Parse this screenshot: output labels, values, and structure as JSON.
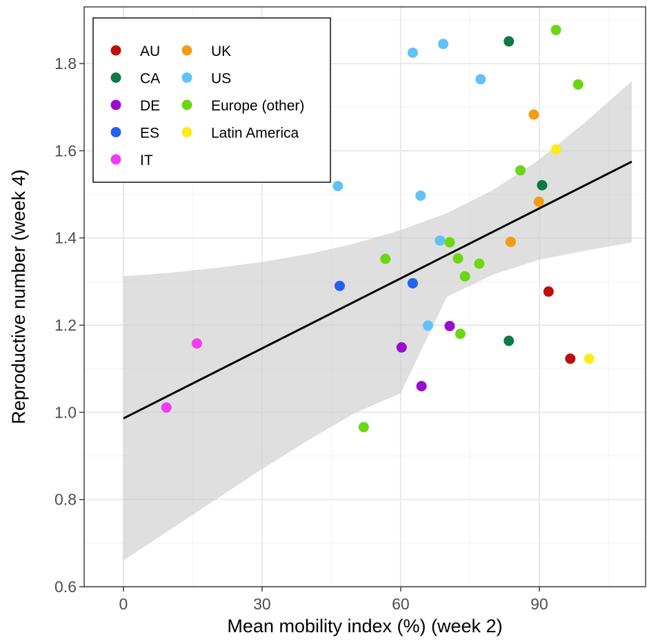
{
  "chart_data": {
    "type": "scatter",
    "title": "",
    "xlabel": "Mean mobility index (%) (week 2)",
    "ylabel": "Reproductive number (week 4)",
    "xlim": [
      -8.5,
      113
    ],
    "ylim": [
      0.6,
      1.93
    ],
    "x_ticks": [
      0,
      30,
      60,
      90
    ],
    "y_ticks": [
      0.6,
      0.8,
      1.0,
      1.2,
      1.4,
      1.6,
      1.8
    ],
    "x_tick_labels": [
      "0",
      "30",
      "60",
      "90"
    ],
    "y_tick_labels": [
      "0.6",
      "0.8",
      "1.0",
      "1.2",
      "1.4",
      "1.6",
      "1.8"
    ],
    "grid": true,
    "legend_position": "top-left",
    "series": [
      {
        "name": "AU",
        "color": "#bf0d0d",
        "points": [
          [
            92.0,
            1.277
          ],
          [
            96.7,
            1.123
          ]
        ]
      },
      {
        "name": "CA",
        "color": "#0b7a45",
        "points": [
          [
            83.4,
            1.851
          ],
          [
            90.6,
            1.521
          ],
          [
            83.4,
            1.164
          ]
        ]
      },
      {
        "name": "DE",
        "color": "#9a0ccf",
        "points": [
          [
            70.6,
            1.198
          ],
          [
            60.2,
            1.149
          ],
          [
            64.5,
            1.06
          ]
        ]
      },
      {
        "name": "ES",
        "color": "#2461f0",
        "points": [
          [
            46.8,
            1.29
          ],
          [
            62.6,
            1.296
          ]
        ]
      },
      {
        "name": "IT",
        "color": "#f23cf0",
        "points": [
          [
            15.9,
            1.158
          ],
          [
            9.3,
            1.011
          ]
        ]
      },
      {
        "name": "UK",
        "color": "#f59c15",
        "points": [
          [
            88.8,
            1.683
          ],
          [
            89.9,
            1.483
          ],
          [
            83.8,
            1.391
          ]
        ]
      },
      {
        "name": "US",
        "color": "#60c2f7",
        "points": [
          [
            62.6,
            1.825
          ],
          [
            69.2,
            1.845
          ],
          [
            77.3,
            1.764
          ],
          [
            46.4,
            1.519
          ],
          [
            64.3,
            1.497
          ],
          [
            68.5,
            1.394
          ],
          [
            65.9,
            1.199
          ]
        ]
      },
      {
        "name": "Europe (other)",
        "color": "#6cd613",
        "points": [
          [
            93.6,
            1.877
          ],
          [
            98.4,
            1.752
          ],
          [
            85.9,
            1.555
          ],
          [
            70.6,
            1.39
          ],
          [
            56.7,
            1.352
          ],
          [
            72.4,
            1.353
          ],
          [
            77.0,
            1.341
          ],
          [
            73.9,
            1.312
          ],
          [
            72.9,
            1.18
          ],
          [
            52.0,
            0.966
          ]
        ]
      },
      {
        "name": "Latin America",
        "color": "#fbec1a",
        "points": [
          [
            93.6,
            1.603
          ],
          [
            100.8,
            1.123
          ]
        ]
      }
    ],
    "fit_line": {
      "x": [
        0,
        110
      ],
      "y": [
        0.986,
        1.575
      ]
    },
    "confidence_band": {
      "x": [
        0,
        10,
        20,
        30,
        40,
        50,
        60,
        70,
        80,
        90,
        100,
        110
      ],
      "upper": [
        1.312,
        1.32,
        1.331,
        1.345,
        1.363,
        1.387,
        1.418,
        1.457,
        1.51,
        1.58,
        1.666,
        1.76
      ],
      "lower": [
        0.66,
        0.73,
        0.8,
        0.87,
        0.936,
        0.998,
        1.044,
        1.265,
        1.316,
        1.35,
        1.371,
        1.39
      ]
    }
  }
}
